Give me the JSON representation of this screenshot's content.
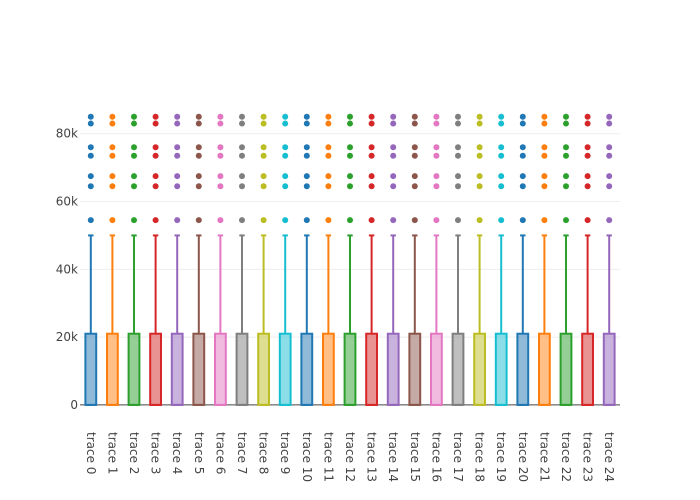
{
  "chart_data": {
    "type": "box",
    "title": "",
    "xlabel": "",
    "ylabel": "",
    "ylim": [
      -1500,
      87000
    ],
    "y_ticks": [
      0,
      20000,
      40000,
      60000,
      80000
    ],
    "y_tick_labels": [
      "0",
      "20k",
      "40k",
      "60k",
      "80k"
    ],
    "grid": true,
    "legend": "none",
    "categories": [
      "trace 0",
      "trace 1",
      "trace 2",
      "trace 3",
      "trace 4",
      "trace 5",
      "trace 6",
      "trace 7",
      "trace 8",
      "trace 9",
      "trace 10",
      "trace 11",
      "trace 12",
      "trace 13",
      "trace 14",
      "trace 15",
      "trace 16",
      "trace 17",
      "trace 18",
      "trace 19",
      "trace 20",
      "trace 21",
      "trace 22",
      "trace 23",
      "trace 24"
    ],
    "colors": [
      "#1f77b4",
      "#ff7f0e",
      "#2ca02c",
      "#d62728",
      "#9467bd",
      "#8c564b",
      "#e377c2",
      "#7f7f7f",
      "#bcbd22",
      "#17becf",
      "#1f77b4",
      "#ff7f0e",
      "#2ca02c",
      "#d62728",
      "#9467bd",
      "#8c564b",
      "#e377c2",
      "#7f7f7f",
      "#bcbd22",
      "#17becf",
      "#1f77b4",
      "#ff7f0e",
      "#2ca02c",
      "#d62728",
      "#9467bd"
    ],
    "box_stats": {
      "lower_fence": 0,
      "q1": 0,
      "median": 0,
      "q3": 21000,
      "upper_fence": 50000
    },
    "outliers": [
      54500,
      64500,
      67500,
      73500,
      76000,
      83000,
      85000
    ]
  }
}
